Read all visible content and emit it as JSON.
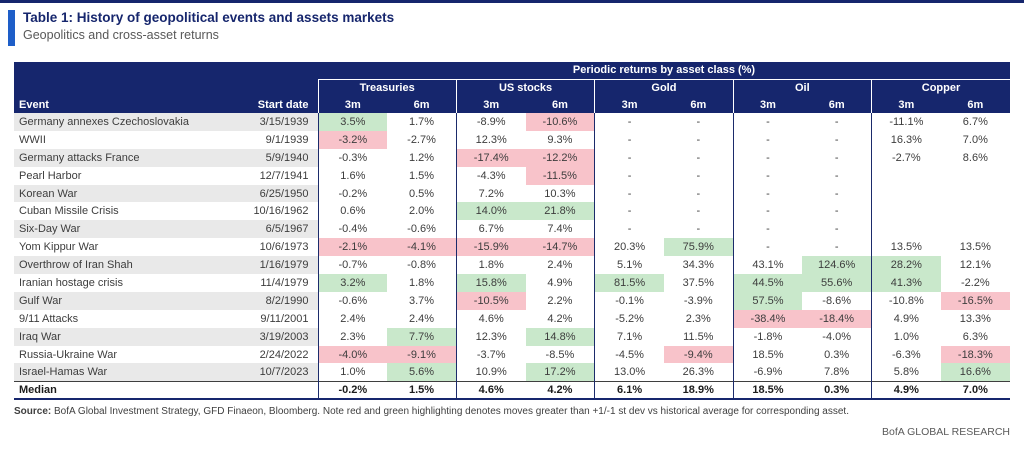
{
  "page": {
    "title": "Table 1: History of geopolitical events and assets markets",
    "subtitle": "Geopolitics and cross-asset returns",
    "source_label": "Source:",
    "source_text": " BofA Global Investment Strategy, GFD Finaeon, Bloomberg. Note red and green highlighting denotes moves greater than +1/-1 st dev vs historical average for corresponding asset.",
    "brand": "BofA GLOBAL RESEARCH"
  },
  "colors": {
    "header_navy": "#16266d",
    "accent_blue": "#1e5ec8",
    "highlight_green": "#c9e8cb",
    "highlight_red": "#f8c3ca",
    "stripe_gray": "#e9e9e9"
  },
  "table": {
    "spanner": "Periodic returns by asset class (%)",
    "groups": [
      "Treasuries",
      "US stocks",
      "Gold",
      "Oil",
      "Copper"
    ],
    "period_labels": [
      "3m",
      "6m"
    ],
    "event_header": "Event",
    "start_date_header": "Start date",
    "median_label": "Median",
    "median_values": [
      "-0.2%",
      "1.5%",
      "4.6%",
      "4.2%",
      "6.1%",
      "18.9%",
      "18.5%",
      "0.3%",
      "4.9%",
      "7.0%"
    ],
    "rows": [
      {
        "event": "Germany annexes Czechoslovakia",
        "date": "3/15/1939",
        "values": [
          "3.5%",
          "1.7%",
          "-8.9%",
          "-10.6%",
          "-",
          "-",
          "-",
          "-",
          "-11.1%",
          "6.7%"
        ],
        "flags": [
          "g",
          "",
          "",
          "r",
          "",
          "",
          "",
          "",
          "",
          ""
        ]
      },
      {
        "event": "WWII",
        "date": "9/1/1939",
        "values": [
          "-3.2%",
          "-2.7%",
          "12.3%",
          "9.3%",
          "-",
          "-",
          "-",
          "-",
          "16.3%",
          "7.0%"
        ],
        "flags": [
          "r",
          "",
          "",
          "",
          "",
          "",
          "",
          "",
          "",
          ""
        ]
      },
      {
        "event": "Germany attacks France",
        "date": "5/9/1940",
        "values": [
          "-0.3%",
          "1.2%",
          "-17.4%",
          "-12.2%",
          "-",
          "-",
          "-",
          "-",
          "-2.7%",
          "8.6%"
        ],
        "flags": [
          "",
          "",
          "r",
          "r",
          "",
          "",
          "",
          "",
          "",
          ""
        ]
      },
      {
        "event": "Pearl Harbor",
        "date": "12/7/1941",
        "values": [
          "1.6%",
          "1.5%",
          "-4.3%",
          "-11.5%",
          "-",
          "-",
          "-",
          "-",
          "",
          ""
        ],
        "flags": [
          "",
          "",
          "",
          "r",
          "",
          "",
          "",
          "",
          "",
          ""
        ]
      },
      {
        "event": "Korean War",
        "date": "6/25/1950",
        "values": [
          "-0.2%",
          "0.5%",
          "7.2%",
          "10.3%",
          "-",
          "-",
          "-",
          "-",
          "",
          ""
        ],
        "flags": [
          "",
          "",
          "",
          "",
          "",
          "",
          "",
          "",
          "",
          ""
        ]
      },
      {
        "event": "Cuban Missile Crisis",
        "date": "10/16/1962",
        "values": [
          "0.6%",
          "2.0%",
          "14.0%",
          "21.8%",
          "-",
          "-",
          "-",
          "-",
          "",
          ""
        ],
        "flags": [
          "",
          "",
          "g",
          "g",
          "",
          "",
          "",
          "",
          "",
          ""
        ]
      },
      {
        "event": "Six-Day War",
        "date": "6/5/1967",
        "values": [
          "-0.4%",
          "-0.6%",
          "6.7%",
          "7.4%",
          "-",
          "-",
          "-",
          "-",
          "",
          ""
        ],
        "flags": [
          "",
          "",
          "",
          "",
          "",
          "",
          "",
          "",
          "",
          ""
        ]
      },
      {
        "event": "Yom Kippur War",
        "date": "10/6/1973",
        "values": [
          "-2.1%",
          "-4.1%",
          "-15.9%",
          "-14.7%",
          "20.3%",
          "75.9%",
          "-",
          "-",
          "13.5%",
          "13.5%"
        ],
        "flags": [
          "r",
          "r",
          "r",
          "r",
          "",
          "g",
          "",
          "",
          "",
          ""
        ]
      },
      {
        "event": "Overthrow of Iran Shah",
        "date": "1/16/1979",
        "values": [
          "-0.7%",
          "-0.8%",
          "1.8%",
          "2.4%",
          "5.1%",
          "34.3%",
          "43.1%",
          "124.6%",
          "28.2%",
          "12.1%"
        ],
        "flags": [
          "",
          "",
          "",
          "",
          "",
          "",
          "",
          "g",
          "g",
          ""
        ]
      },
      {
        "event": "Iranian hostage crisis",
        "date": "11/4/1979",
        "values": [
          "3.2%",
          "1.8%",
          "15.8%",
          "4.9%",
          "81.5%",
          "37.5%",
          "44.5%",
          "55.6%",
          "41.3%",
          "-2.2%"
        ],
        "flags": [
          "g",
          "",
          "g",
          "",
          "g",
          "",
          "g",
          "g",
          "g",
          ""
        ]
      },
      {
        "event": "Gulf War",
        "date": "8/2/1990",
        "values": [
          "-0.6%",
          "3.7%",
          "-10.5%",
          "2.2%",
          "-0.1%",
          "-3.9%",
          "57.5%",
          "-8.6%",
          "-10.8%",
          "-16.5%"
        ],
        "flags": [
          "",
          "",
          "r",
          "",
          "",
          "",
          "g",
          "",
          "",
          "r"
        ]
      },
      {
        "event": "9/11 Attacks",
        "date": "9/11/2001",
        "values": [
          "2.4%",
          "2.4%",
          "4.6%",
          "4.2%",
          "-5.2%",
          "2.3%",
          "-38.4%",
          "-18.4%",
          "4.9%",
          "13.3%"
        ],
        "flags": [
          "",
          "",
          "",
          "",
          "",
          "",
          "r",
          "r",
          "",
          ""
        ]
      },
      {
        "event": "Iraq War",
        "date": "3/19/2003",
        "values": [
          "2.3%",
          "7.7%",
          "12.3%",
          "14.8%",
          "7.1%",
          "11.5%",
          "-1.8%",
          "-4.0%",
          "1.0%",
          "6.3%"
        ],
        "flags": [
          "",
          "g",
          "",
          "g",
          "",
          "",
          "",
          "",
          "",
          ""
        ]
      },
      {
        "event": "Russia-Ukraine War",
        "date": "2/24/2022",
        "values": [
          "-4.0%",
          "-9.1%",
          "-3.7%",
          "-8.5%",
          "-4.5%",
          "-9.4%",
          "18.5%",
          "0.3%",
          "-6.3%",
          "-18.3%"
        ],
        "flags": [
          "r",
          "r",
          "",
          "",
          "",
          "r",
          "",
          "",
          "",
          "r"
        ]
      },
      {
        "event": "Israel-Hamas War",
        "date": "10/7/2023",
        "values": [
          "1.0%",
          "5.6%",
          "10.9%",
          "17.2%",
          "13.0%",
          "26.3%",
          "-6.9%",
          "7.8%",
          "5.8%",
          "16.6%"
        ],
        "flags": [
          "",
          "g",
          "",
          "g",
          "",
          "",
          "",
          "",
          "",
          "g"
        ]
      }
    ]
  }
}
